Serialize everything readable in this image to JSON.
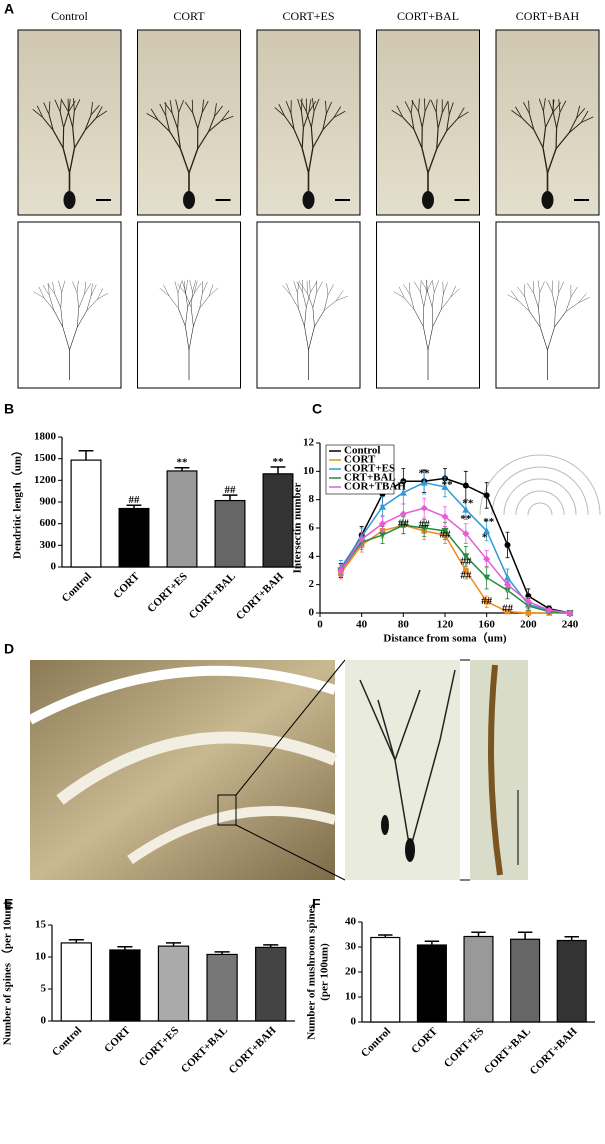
{
  "panels": {
    "A": {
      "label": "A",
      "columns": [
        "Control",
        "CORT",
        "CORT+ES",
        "CORT+BAL",
        "CORT+BAH"
      ]
    },
    "D": {
      "label": "D"
    }
  },
  "chart_data": [
    {
      "type": "bar",
      "panel_label": "B",
      "ylabel": "Dendritic length（um）",
      "categories": [
        "Control",
        "CORT",
        "CORT+ES",
        "CORT+BAL",
        "CORT+BAH"
      ],
      "values": [
        1480,
        810,
        1330,
        920,
        1290
      ],
      "errors": [
        130,
        45,
        45,
        75,
        95
      ],
      "colors": [
        "#ffffff",
        "#000000",
        "#999999",
        "#666666",
        "#333333"
      ],
      "ylim": [
        0,
        1800
      ],
      "yticks": [
        0,
        300,
        600,
        900,
        1200,
        1500,
        1800
      ],
      "annotations": [
        {
          "text": "##",
          "x": "CORT",
          "y": 920
        },
        {
          "text": "**",
          "x": "CORT+ES",
          "y": 1440
        },
        {
          "text": "##",
          "x": "CORT+BAL",
          "y": 1060
        },
        {
          "text": "**",
          "x": "CORT+BAH",
          "y": 1450
        }
      ]
    },
    {
      "type": "line",
      "panel_label": "C",
      "xlabel": "Distance from soma（um)",
      "ylabel": "Intersectin number",
      "x": [
        20,
        40,
        60,
        80,
        100,
        120,
        140,
        160,
        180,
        200,
        220,
        240
      ],
      "xlim": [
        0,
        240
      ],
      "xticks": [
        0,
        40,
        80,
        120,
        160,
        200,
        240
      ],
      "ylim": [
        0,
        12
      ],
      "yticks": [
        0,
        2,
        4,
        6,
        8,
        10,
        12
      ],
      "legend": "top-left",
      "series": [
        {
          "name": "Control",
          "color": "#000000",
          "marker": "circle",
          "values": [
            3,
            5.5,
            8.4,
            9.3,
            9.3,
            9.5,
            9,
            8.3,
            4.8,
            1.2,
            0.3,
            0
          ],
          "errors": [
            0.5,
            0.6,
            0.8,
            0.9,
            0.8,
            0.7,
            1,
            0.9,
            0.9,
            0.5,
            0.2,
            0
          ]
        },
        {
          "name": "CORT",
          "color": "#f08a1c",
          "marker": "square",
          "values": [
            2.8,
            4.8,
            5.8,
            6.2,
            5.8,
            5.5,
            3,
            0.8,
            0.1,
            0,
            0,
            0
          ],
          "errors": [
            0.4,
            0.5,
            0.5,
            0.6,
            0.6,
            0.6,
            0.6,
            0.4,
            0.1,
            0,
            0,
            0
          ]
        },
        {
          "name": "CORT+ES",
          "color": "#2f9ad8",
          "marker": "triangle",
          "values": [
            3.2,
            5.4,
            7.5,
            8.5,
            9.2,
            8.9,
            7.3,
            5.8,
            2.5,
            0.6,
            0.2,
            0
          ],
          "errors": [
            0.5,
            0.6,
            0.7,
            0.8,
            0.8,
            0.7,
            0.7,
            0.7,
            0.6,
            0.3,
            0.1,
            0
          ]
        },
        {
          "name": "CRT+BAL",
          "color": "#228b3c",
          "marker": "triangle-down",
          "values": [
            3,
            5,
            5.5,
            6.2,
            6,
            5.8,
            4,
            2.5,
            1.6,
            0.5,
            0.1,
            0
          ],
          "errors": [
            0.4,
            0.5,
            0.6,
            0.6,
            0.6,
            0.6,
            0.7,
            0.8,
            0.6,
            0.3,
            0.1,
            0
          ]
        },
        {
          "name": "COR+TBAH",
          "color": "#e85ad6",
          "marker": "diamond",
          "values": [
            3,
            5.2,
            6.3,
            7,
            7.4,
            6.8,
            5.6,
            3.8,
            2,
            0.8,
            0.2,
            0
          ],
          "errors": [
            0.4,
            0.5,
            0.6,
            0.7,
            0.7,
            0.7,
            0.7,
            0.6,
            0.5,
            0.3,
            0.1,
            0
          ]
        }
      ],
      "annotations": [
        {
          "text": "**",
          "x": 100,
          "y": 9.8
        },
        {
          "text": "**",
          "x": 122,
          "y": 9
        },
        {
          "text": "**",
          "x": 142,
          "y": 7.7
        },
        {
          "text": "**",
          "x": 162,
          "y": 6.4
        },
        {
          "text": "**",
          "x": 140,
          "y": 6.6
        },
        {
          "text": "*",
          "x": 158,
          "y": 5.3
        },
        {
          "text": "##",
          "x": 80,
          "y": 6.3
        },
        {
          "text": "##",
          "x": 100,
          "y": 6.2
        },
        {
          "text": "##",
          "x": 120,
          "y": 5.5
        },
        {
          "text": "##",
          "x": 140,
          "y": 3.6
        },
        {
          "text": "##",
          "x": 140,
          "y": 2.6
        },
        {
          "text": "##",
          "x": 160,
          "y": 0.8
        },
        {
          "text": "##",
          "x": 180,
          "y": 0.3
        }
      ]
    },
    {
      "type": "bar",
      "panel_label": "E",
      "ylabel": "Number of spines （per 10um)",
      "categories": [
        "Control",
        "CORT",
        "CORT+ES",
        "CORT+BAL",
        "CORT+BAH"
      ],
      "values": [
        12.2,
        11.1,
        11.7,
        10.4,
        11.5
      ],
      "errors": [
        0.5,
        0.5,
        0.5,
        0.4,
        0.4
      ],
      "colors": [
        "#ffffff",
        "#000000",
        "#aaaaaa",
        "#777777",
        "#444444"
      ],
      "ylim": [
        0,
        15
      ],
      "yticks": [
        0,
        5,
        10,
        15
      ]
    },
    {
      "type": "bar",
      "panel_label": "F",
      "ylabel": [
        "Number of mushroom spines",
        "(per 100um)"
      ],
      "categories": [
        "Control",
        "CORT",
        "CORT+ES",
        "CORT+BAL",
        "CORT+BAH"
      ],
      "values": [
        33.8,
        30.8,
        34.2,
        33.1,
        32.6
      ],
      "errors": [
        1,
        1.5,
        1.7,
        2.8,
        1.5
      ],
      "colors": [
        "#ffffff",
        "#000000",
        "#999999",
        "#666666",
        "#333333"
      ],
      "ylim": [
        0,
        40
      ],
      "yticks": [
        0,
        10,
        20,
        30,
        40
      ]
    }
  ]
}
